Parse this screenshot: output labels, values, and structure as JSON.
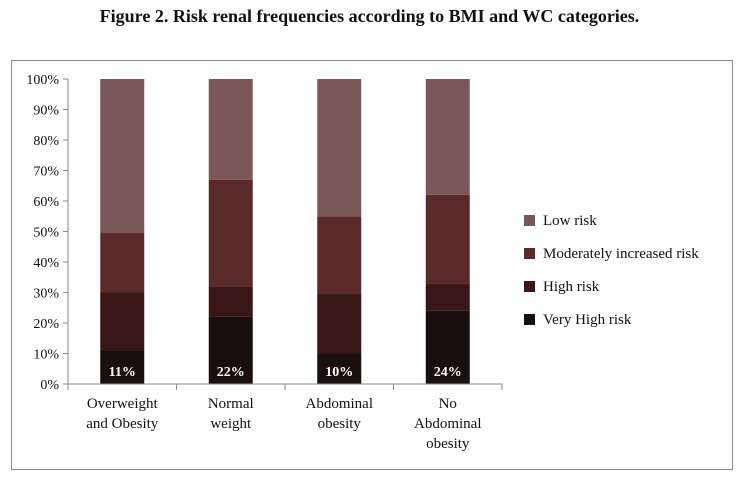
{
  "figure": {
    "title": "Figure 2. Risk renal frequencies according to BMI and WC categories."
  },
  "chart_data": {
    "type": "bar",
    "stacked": true,
    "percent_stacked": true,
    "categories": [
      [
        "Overweight",
        "and Obesity"
      ],
      [
        "Normal",
        "weight"
      ],
      [
        "Abdominal",
        "obesity"
      ],
      [
        "No",
        "Abdominal",
        "obesity"
      ]
    ],
    "series": [
      {
        "name": "Very High risk",
        "color": "#1a0f0f",
        "values": [
          11,
          22,
          10,
          24
        ]
      },
      {
        "name": "High risk",
        "color": "#3a1717",
        "values": [
          19,
          10,
          19.5,
          9
        ]
      },
      {
        "name": "Moderately increased risk",
        "color": "#5a2a2a",
        "values": [
          19.5,
          35,
          25.5,
          29
        ]
      },
      {
        "name": "Low risk",
        "color": "#7b5858",
        "values": [
          50.5,
          33,
          45,
          38
        ]
      }
    ],
    "data_labels": [
      "11%",
      "22%",
      "10%",
      "24%"
    ],
    "yticks": [
      "0%",
      "10%",
      "20%",
      "30%",
      "40%",
      "50%",
      "60%",
      "70%",
      "80%",
      "90%",
      "100%"
    ],
    "ylim": [
      0,
      100
    ],
    "grid": false,
    "legend_position": "right",
    "legend_order": [
      "Low risk",
      "Moderately increased risk",
      "High risk",
      "Very High risk"
    ]
  }
}
